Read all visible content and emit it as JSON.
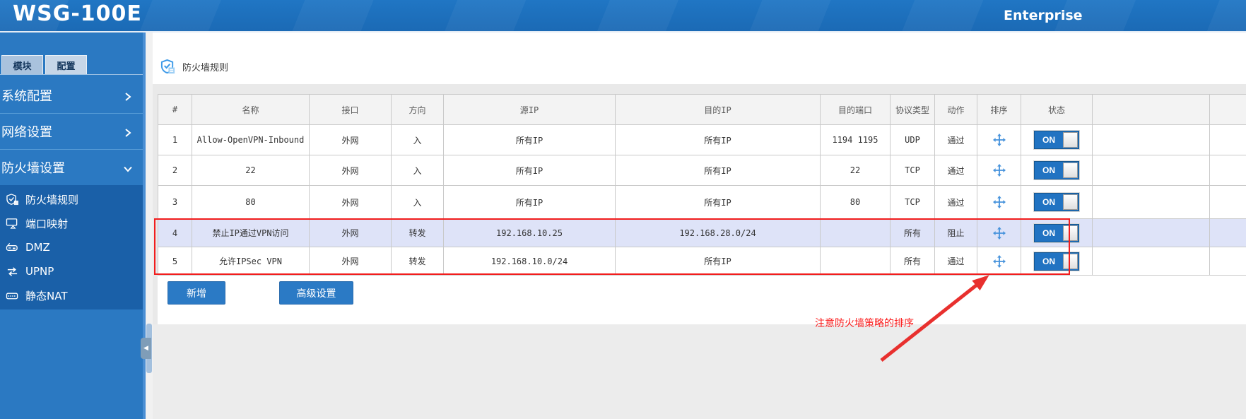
{
  "header": {
    "logo": "WSG-100E",
    "edition": "Enterprise"
  },
  "sidebar": {
    "tabs": [
      {
        "id": "module",
        "label": "模块",
        "active": true
      },
      {
        "id": "config",
        "label": "配置",
        "active": false
      }
    ],
    "menus": [
      {
        "id": "system-config",
        "label": "系统配置",
        "state": "collapsed"
      },
      {
        "id": "network-settings",
        "label": "网络设置",
        "state": "collapsed"
      },
      {
        "id": "firewall-settings",
        "label": "防火墙设置",
        "state": "expanded"
      }
    ],
    "submenu": [
      {
        "id": "firewall-rules",
        "label": "防火墙规则",
        "icon": "shield-check-icon",
        "active": true
      },
      {
        "id": "port-mapping",
        "label": "端口映射",
        "icon": "port-mapping-icon",
        "active": false
      },
      {
        "id": "dmz",
        "label": "DMZ",
        "icon": "dmz-icon",
        "active": false
      },
      {
        "id": "upnp",
        "label": "UPNP",
        "icon": "upnp-icon",
        "active": false
      },
      {
        "id": "static-nat",
        "label": "静态NAT",
        "icon": "static-nat-icon",
        "active": false
      }
    ]
  },
  "page": {
    "title": "防火墙规则"
  },
  "table": {
    "columns": [
      "#",
      "名称",
      "接口",
      "方向",
      "源IP",
      "目的IP",
      "目的端口",
      "协议类型",
      "动作",
      "排序",
      "状态"
    ],
    "rows": [
      {
        "num": "1",
        "name": "Allow-OpenVPN-Inbound",
        "iface": "外网",
        "direction": "入",
        "src_ip": "所有IP",
        "dst_ip": "所有IP",
        "dst_port": "1194 1195",
        "protocol": "UDP",
        "action": "通过",
        "status": "ON",
        "highlighted": false
      },
      {
        "num": "2",
        "name": "22",
        "iface": "外网",
        "direction": "入",
        "src_ip": "所有IP",
        "dst_ip": "所有IP",
        "dst_port": "22",
        "protocol": "TCP",
        "action": "通过",
        "status": "ON",
        "highlighted": false
      },
      {
        "num": "3",
        "name": "80",
        "iface": "外网",
        "direction": "入",
        "src_ip": "所有IP",
        "dst_ip": "所有IP",
        "dst_port": "80",
        "protocol": "TCP",
        "action": "通过",
        "status": "ON",
        "highlighted": false
      },
      {
        "num": "4",
        "name": "禁止IP通过VPN访问",
        "iface": "外网",
        "direction": "转发",
        "src_ip": "192.168.10.25",
        "dst_ip": "192.168.28.0/24",
        "dst_port": "",
        "protocol": "所有",
        "action": "阻止",
        "status": "ON",
        "highlighted": true
      },
      {
        "num": "5",
        "name": "允许IPSec VPN",
        "iface": "外网",
        "direction": "转发",
        "src_ip": "192.168.10.0/24",
        "dst_ip": "所有IP",
        "dst_port": "",
        "protocol": "所有",
        "action": "通过",
        "status": "ON",
        "highlighted": false
      }
    ]
  },
  "buttons": {
    "add": "新增",
    "advanced": "高级设置"
  },
  "annotation": {
    "note": "注意防火墙策略的排序"
  },
  "colors": {
    "header_blue": "#1b6ab5",
    "sidebar_blue": "#2b79c2",
    "submenu_blue": "#1a60a8",
    "accent_blue": "#2b7ac5",
    "toggle_blue": "#2173c2",
    "highlight_row": "#dee3f8",
    "annotation_red": "#fb2020"
  }
}
